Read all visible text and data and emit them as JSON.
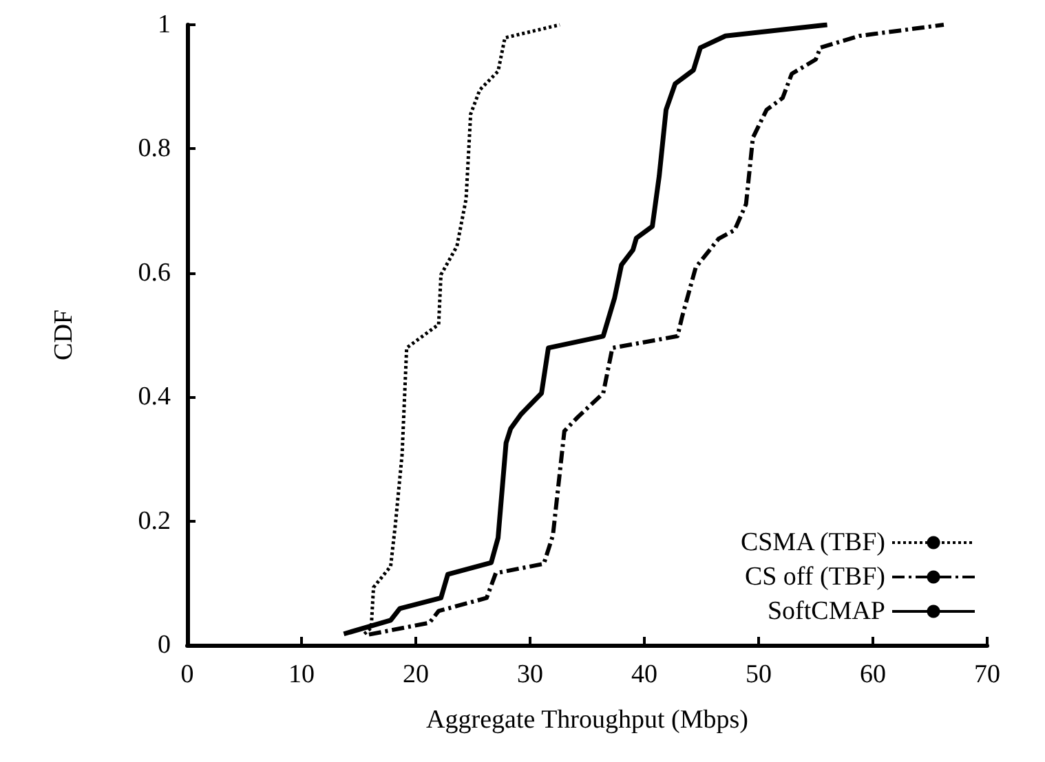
{
  "chart_data": {
    "type": "line",
    "xlabel": "Aggregate Throughput (Mbps)",
    "ylabel": "CDF",
    "xlim": [
      0,
      70
    ],
    "xticks": [
      0,
      10,
      20,
      30,
      40,
      50,
      60,
      70
    ],
    "ylim": [
      0,
      1
    ],
    "yticks": [
      0,
      0.2,
      0.4,
      0.6,
      0.8,
      1
    ],
    "grid": false,
    "legend": "bottom right",
    "marker": "none",
    "series": [
      {
        "name": "CSMA (TBF)",
        "color": "#000000",
        "line_style": "dotted",
        "x": [
          15.5,
          16.1,
          16.3,
          17.8,
          18.2,
          18.8,
          19.2,
          22.0,
          22.2,
          23.6,
          24.4,
          24.8,
          25.6,
          27.2,
          27.8,
          32.6
        ],
        "values": [
          0.018,
          0.028,
          0.093,
          0.127,
          0.192,
          0.307,
          0.479,
          0.517,
          0.597,
          0.643,
          0.719,
          0.856,
          0.895,
          0.925,
          0.979,
          1.0
        ]
      },
      {
        "name": "CS off (TBF)",
        "color": "#000000",
        "line_style": "dashed",
        "x": [
          15.9,
          21.2,
          22.0,
          26.2,
          27.0,
          31.2,
          32.0,
          33.0,
          34.2,
          36.4,
          37.2,
          42.9,
          43.3,
          44.5,
          46.5,
          47.9,
          48.9,
          49.5,
          50.7,
          52.1,
          52.9,
          55.0,
          55.4,
          58.8,
          66.2
        ],
        "values": [
          0.017,
          0.036,
          0.055,
          0.076,
          0.116,
          0.131,
          0.177,
          0.345,
          0.368,
          0.406,
          0.479,
          0.498,
          0.529,
          0.609,
          0.655,
          0.669,
          0.711,
          0.818,
          0.863,
          0.882,
          0.921,
          0.944,
          0.963,
          0.982,
          1.0
        ]
      },
      {
        "name": "SoftCMAP",
        "color": "#000000",
        "line_style": "solid",
        "x": [
          13.7,
          17.8,
          18.6,
          22.2,
          22.8,
          26.6,
          27.2,
          27.9,
          28.3,
          29.2,
          31.0,
          31.6,
          36.4,
          37.4,
          38.0,
          39.0,
          39.3,
          40.7,
          41.3,
          41.9,
          42.7,
          44.3,
          44.9,
          47.1,
          56.0
        ],
        "values": [
          0.018,
          0.04,
          0.059,
          0.076,
          0.114,
          0.133,
          0.173,
          0.326,
          0.349,
          0.372,
          0.406,
          0.479,
          0.498,
          0.56,
          0.613,
          0.637,
          0.656,
          0.675,
          0.756,
          0.863,
          0.905,
          0.927,
          0.963,
          0.982,
          1.0
        ]
      }
    ]
  }
}
